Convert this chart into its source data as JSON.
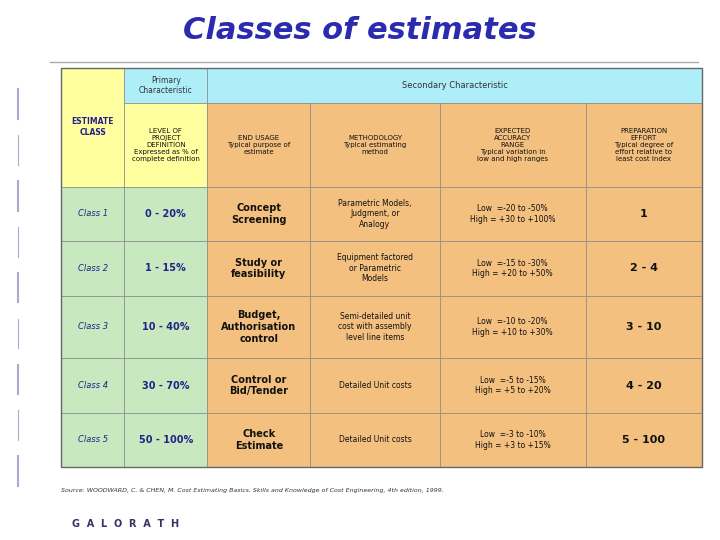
{
  "title": "Classes of estimates",
  "title_color": "#2B2BB0",
  "title_fontsize": 22,
  "slide_bg": "#FFFFFF",
  "header_bg_cyan": "#AEEEF8",
  "header_bg_yellow": "#FFFFA0",
  "row_bg_green": "#C8E8C0",
  "row_bg_orange": "#F4C080",
  "primary_header": "Primary\nCharacteristic",
  "secondary_header": "Secondary Characteristic",
  "col0_header": "ESTIMATE\nCLASS",
  "col1_header": "LEVEL OF\nPROJECT\nDEFINITION\nExpressed as % of\ncomplete definition",
  "col2_header": "END USAGE\nTypical purpose of\nestimate",
  "col3_header": "METHODOLOGY\nTypical estimating\nmethod",
  "col4_header": "EXPECTED\nACCURACY\nRANGE\nTypical variation in\nlow and high ranges",
  "col5_header": "PREPARATION\nEFFORT\nTypical degree of\neffort relative to\nleast cost index",
  "rows": [
    {
      "class": "Class 1",
      "level": "0 - 20%",
      "end_usage": "Concept\nScreening",
      "methodology": "Parametric Models,\nJudgment, or\nAnalogy",
      "accuracy": "Low  =-20 to -50%\nHigh = +30 to +100%",
      "preparation": "1"
    },
    {
      "class": "Class 2",
      "level": "1 - 15%",
      "end_usage": "Study or\nfeasibility",
      "methodology": "Equipment factored\nor Parametric\nModels",
      "accuracy": "Low  =-15 to -30%\nHigh = +20 to +50%",
      "preparation": "2 - 4"
    },
    {
      "class": "Class 3",
      "level": "10 - 40%",
      "end_usage": "Budget,\nAuthorisation\ncontrol",
      "methodology": "Semi-detailed unit\ncost with assembly\nlevel line items",
      "accuracy": "Low  =-10 to -20%\nHigh = +10 to +30%",
      "preparation": "3 - 10"
    },
    {
      "class": "Class 4",
      "level": "30 - 70%",
      "end_usage": "Control or\nBid/Tender",
      "methodology": "Detailed Unit costs",
      "accuracy": "Low  =-5 to -15%\nHigh = +5 to +20%",
      "preparation": "4 - 20"
    },
    {
      "class": "Class 5",
      "level": "50 - 100%",
      "end_usage": "Check\nEstimate",
      "methodology": "Detailed Unit costs",
      "accuracy": "Low  =-3 to -10%\nHigh = +3 to +15%",
      "preparation": "5 - 100"
    }
  ],
  "source_text": "Source: WOODWARD, C. & CHEN, M. Cost Estimating Basics. Skills and Knowledge of Cost Engineering, 4th edition, 1999.",
  "line_color": "#AAAAAA",
  "left_deco_color": "#AAAACC",
  "galorath_text": "G  A  L  O  R  A  T  H",
  "galorath_color": "#333366"
}
